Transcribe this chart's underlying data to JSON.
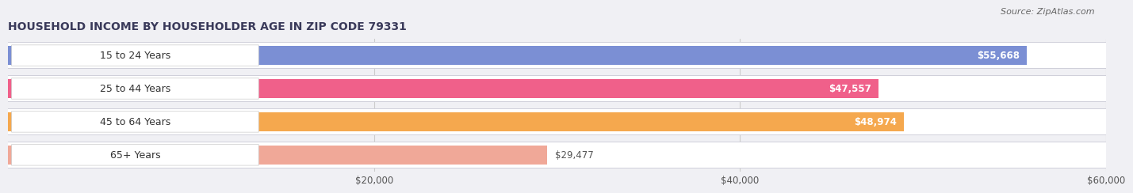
{
  "title": "HOUSEHOLD INCOME BY HOUSEHOLDER AGE IN ZIP CODE 79331",
  "source": "Source: ZipAtlas.com",
  "categories": [
    "15 to 24 Years",
    "25 to 44 Years",
    "45 to 64 Years",
    "65+ Years"
  ],
  "values": [
    55668,
    47557,
    48974,
    29477
  ],
  "bar_colors": [
    "#7b8fd4",
    "#f0608a",
    "#f5a84e",
    "#f0a898"
  ],
  "bar_labels": [
    "$55,668",
    "$47,557",
    "$48,974",
    "$29,477"
  ],
  "label_inside": [
    true,
    true,
    true,
    false
  ],
  "xlim": [
    0,
    60000
  ],
  "xticks": [
    20000,
    40000,
    60000
  ],
  "xticklabels": [
    "$20,000",
    "$40,000",
    "$60,000"
  ],
  "title_fontsize": 10,
  "source_fontsize": 8,
  "tick_fontsize": 8.5,
  "bar_label_fontsize": 8.5,
  "cat_label_fontsize": 9,
  "background_color": "#f0f0f4",
  "bar_bg_color": "#e2e2e8",
  "title_color": "#3a3a5a",
  "source_color": "#666666",
  "grid_color": "#cccccc",
  "cat_label_color": "#333333"
}
